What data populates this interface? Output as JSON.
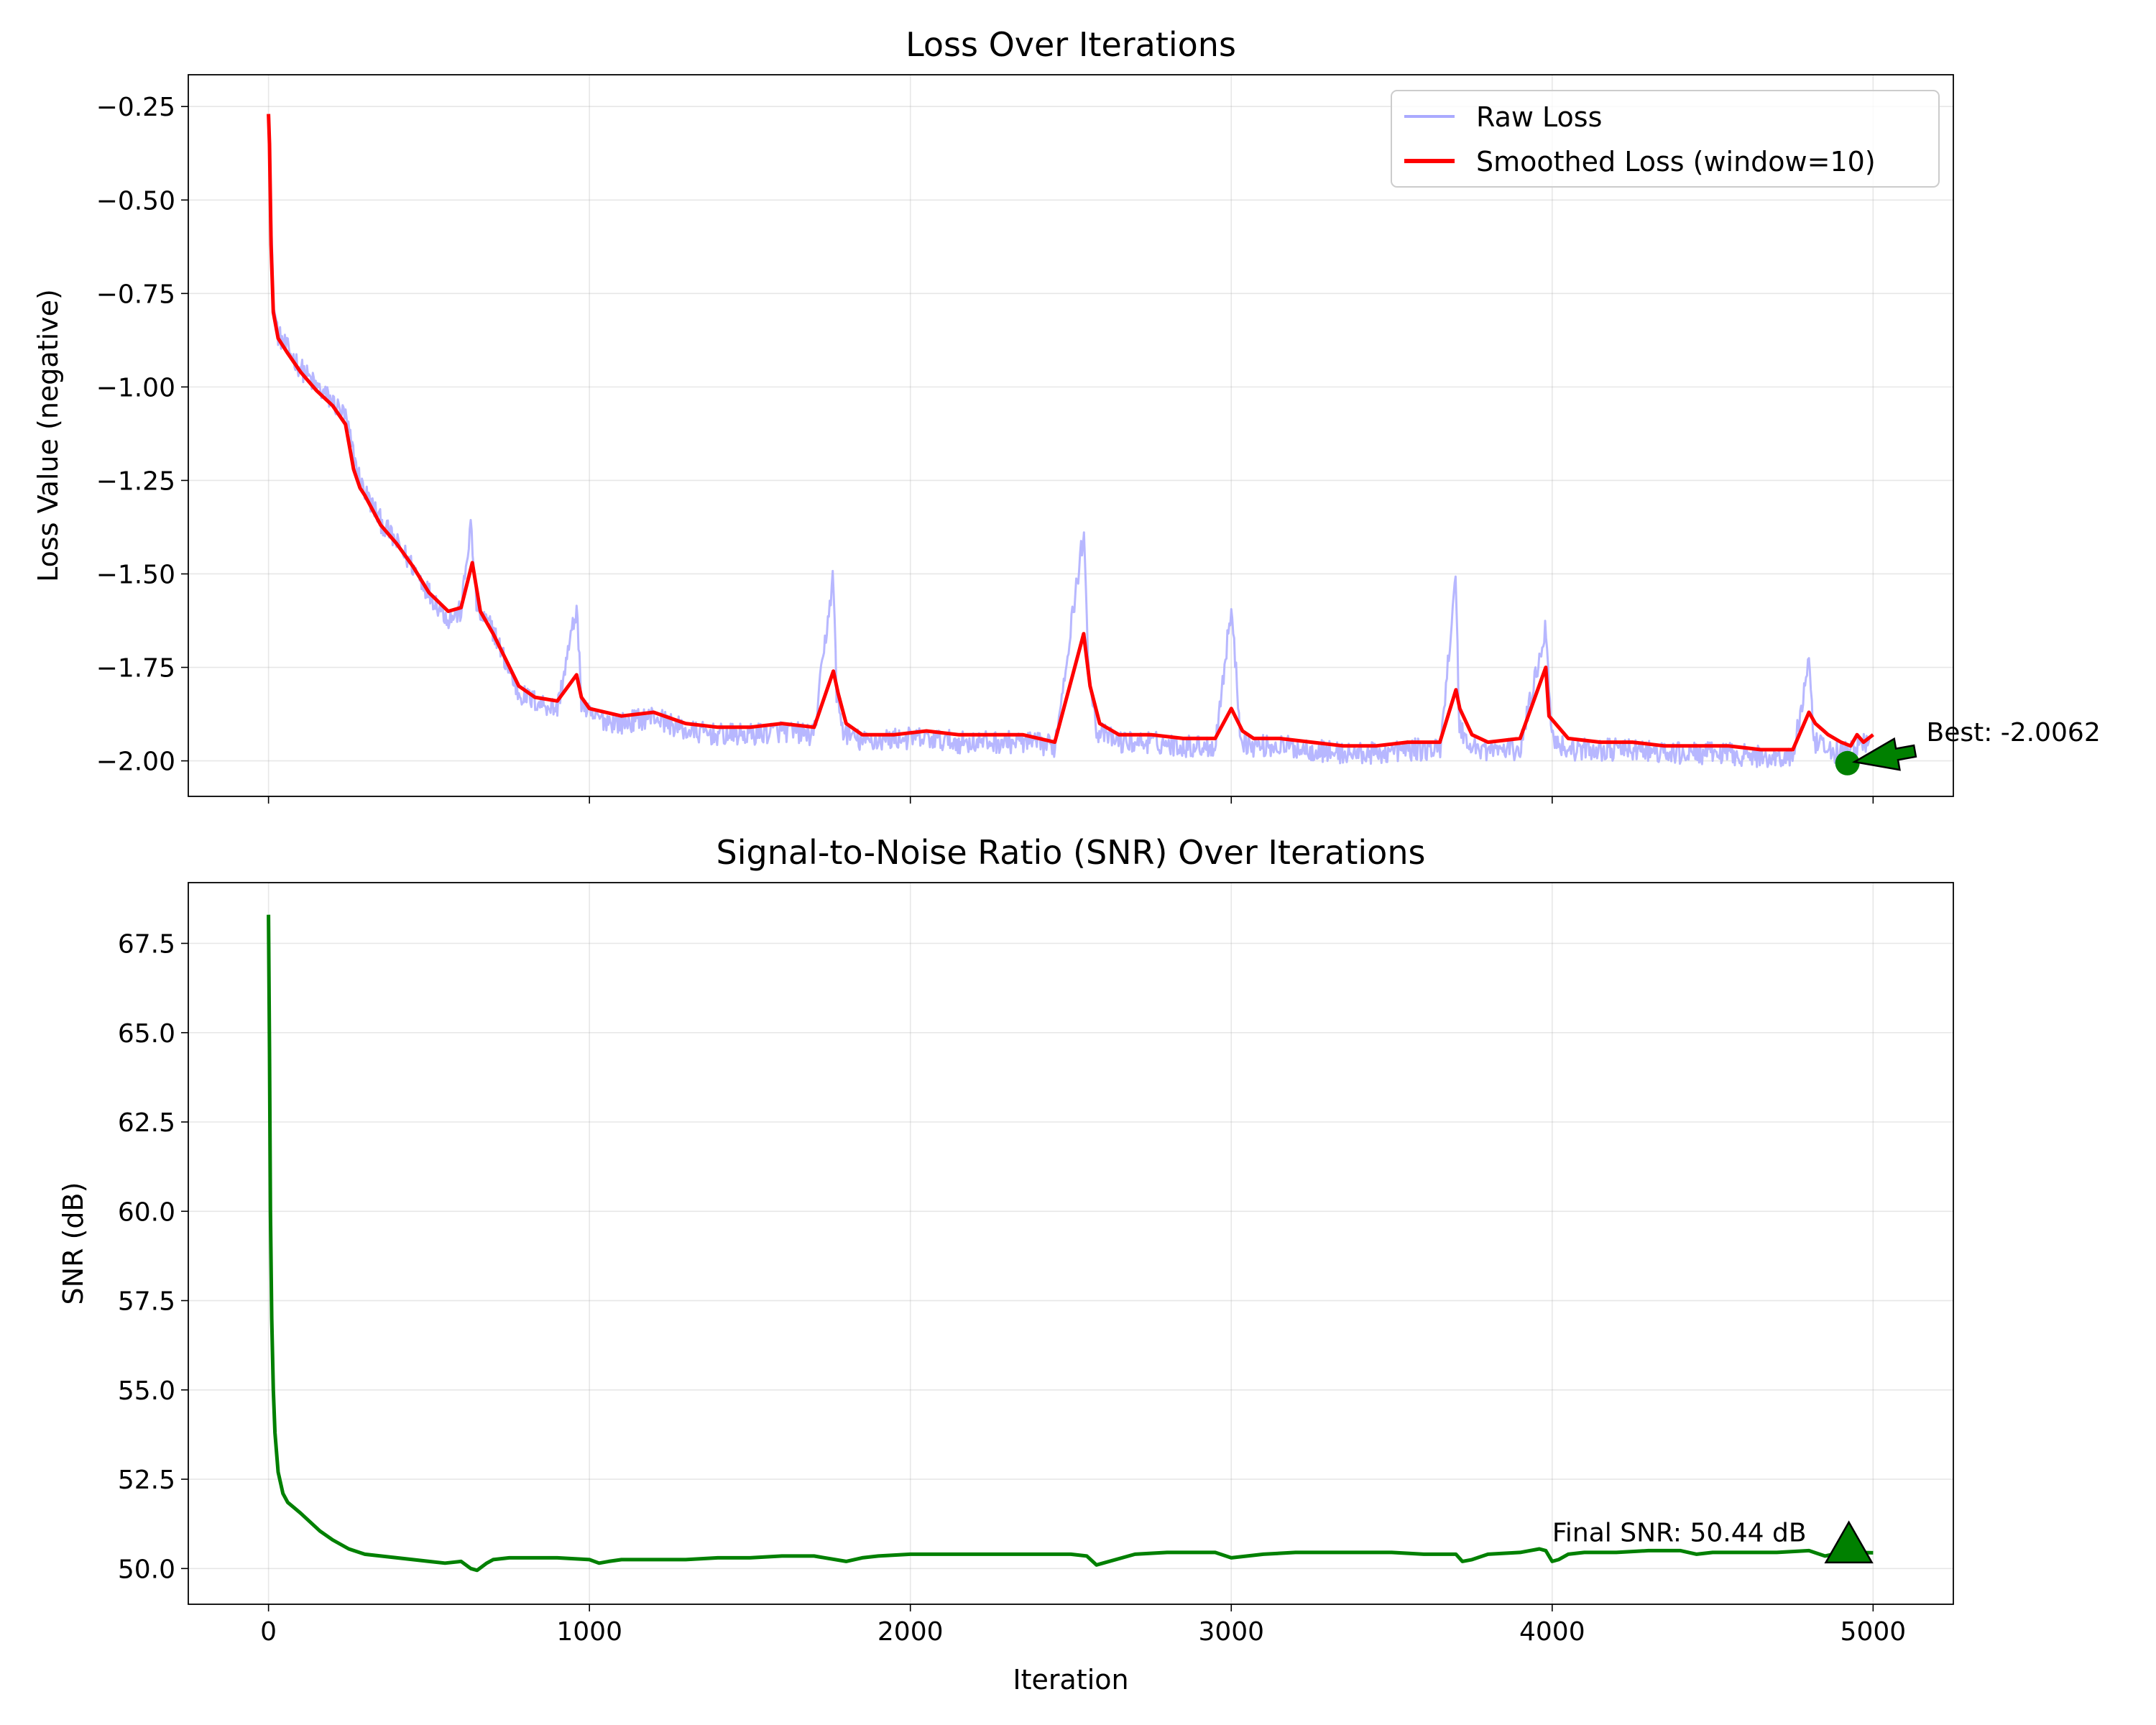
{
  "chart_data": [
    {
      "type": "line",
      "title": "Loss Over Iterations",
      "xlabel": "",
      "ylabel": "Loss Value (negative)",
      "xlim": [
        -250,
        5250
      ],
      "ylim": [
        -2.095,
        -0.165
      ],
      "xticks": [
        0,
        1000,
        2000,
        3000,
        4000,
        5000
      ],
      "xtick_labels_shown": false,
      "yticks": [
        -0.25,
        -0.5,
        -0.75,
        -1.0,
        -1.25,
        -1.5,
        -1.75,
        -2.0
      ],
      "ytick_labels": [
        "−0.25",
        "−0.50",
        "−0.75",
        "−1.00",
        "−1.25",
        "−1.50",
        "−1.75",
        "−2.00"
      ],
      "grid": true,
      "legend": "top-right",
      "series": [
        {
          "name": "Raw Loss",
          "color": "#aaaaff",
          "style": "noisy",
          "x": [
            0,
            3,
            8,
            15,
            30,
            60,
            100,
            150,
            200,
            240,
            265,
            285,
            300,
            350,
            400,
            450,
            500,
            560,
            600,
            630,
            650,
            700,
            740,
            780,
            830,
            900,
            960,
            975,
            1000,
            1100,
            1200,
            1300,
            1400,
            1500,
            1600,
            1700,
            1760,
            1770,
            1790,
            1850,
            1950,
            2050,
            2150,
            2250,
            2350,
            2450,
            2540,
            2555,
            2580,
            2650,
            2750,
            2850,
            2950,
            3000,
            3030,
            3060,
            3150,
            3250,
            3350,
            3450,
            3550,
            3650,
            3700,
            3710,
            3740,
            3800,
            3900,
            3980,
            4000,
            4050,
            4150,
            4250,
            4350,
            4450,
            4550,
            4650,
            4750,
            4800,
            4815,
            4850,
            4900,
            4950,
            4990
          ],
          "y": [
            -0.25,
            -0.3,
            -0.55,
            -0.78,
            -0.86,
            -0.9,
            -0.95,
            -1.0,
            -1.04,
            -1.08,
            -1.18,
            -1.25,
            -1.28,
            -1.36,
            -1.42,
            -1.48,
            -1.55,
            -1.62,
            -1.6,
            -1.37,
            -1.6,
            -1.65,
            -1.74,
            -1.82,
            -1.84,
            -1.86,
            -1.59,
            -1.84,
            -1.88,
            -1.9,
            -1.88,
            -1.92,
            -1.93,
            -1.93,
            -1.92,
            -1.93,
            -1.5,
            -1.82,
            -1.92,
            -1.95,
            -1.94,
            -1.94,
            -1.95,
            -1.95,
            -1.95,
            -1.96,
            -1.39,
            -1.74,
            -1.92,
            -1.95,
            -1.95,
            -1.96,
            -1.96,
            -1.59,
            -1.94,
            -1.96,
            -1.96,
            -1.97,
            -1.98,
            -1.98,
            -1.97,
            -1.97,
            -1.51,
            -1.9,
            -1.96,
            -1.97,
            -1.97,
            -1.64,
            -1.94,
            -1.97,
            -1.97,
            -1.97,
            -1.98,
            -1.98,
            -1.98,
            -1.99,
            -1.99,
            -1.74,
            -1.95,
            -1.97,
            -1.98,
            -1.96,
            -1.95
          ]
        },
        {
          "name": "Smoothed Loss (window=10)",
          "color": "#ff0000",
          "x": [
            0,
            3,
            8,
            15,
            30,
            60,
            100,
            150,
            200,
            240,
            265,
            285,
            300,
            350,
            400,
            450,
            500,
            560,
            600,
            635,
            660,
            700,
            740,
            780,
            830,
            900,
            960,
            975,
            1000,
            1100,
            1200,
            1300,
            1400,
            1500,
            1600,
            1700,
            1760,
            1775,
            1800,
            1850,
            1950,
            2050,
            2150,
            2250,
            2350,
            2450,
            2540,
            2560,
            2590,
            2650,
            2750,
            2850,
            2950,
            3000,
            3035,
            3070,
            3150,
            3250,
            3350,
            3450,
            3550,
            3650,
            3700,
            3712,
            3750,
            3800,
            3900,
            3980,
            3990,
            4050,
            4150,
            4250,
            4350,
            4450,
            4550,
            4650,
            4750,
            4800,
            4820,
            4860,
            4900,
            4930,
            4950,
            4970,
            5000
          ],
          "y": [
            -0.27,
            -0.35,
            -0.62,
            -0.8,
            -0.87,
            -0.91,
            -0.96,
            -1.01,
            -1.05,
            -1.1,
            -1.22,
            -1.27,
            -1.29,
            -1.37,
            -1.42,
            -1.48,
            -1.55,
            -1.6,
            -1.59,
            -1.47,
            -1.6,
            -1.66,
            -1.73,
            -1.8,
            -1.83,
            -1.84,
            -1.77,
            -1.83,
            -1.86,
            -1.88,
            -1.87,
            -1.9,
            -1.91,
            -1.91,
            -1.9,
            -1.91,
            -1.76,
            -1.82,
            -1.9,
            -1.93,
            -1.93,
            -1.92,
            -1.93,
            -1.93,
            -1.93,
            -1.95,
            -1.66,
            -1.8,
            -1.9,
            -1.93,
            -1.93,
            -1.94,
            -1.94,
            -1.86,
            -1.92,
            -1.94,
            -1.94,
            -1.95,
            -1.96,
            -1.96,
            -1.95,
            -1.95,
            -1.81,
            -1.86,
            -1.93,
            -1.95,
            -1.94,
            -1.75,
            -1.88,
            -1.94,
            -1.95,
            -1.95,
            -1.96,
            -1.96,
            -1.96,
            -1.97,
            -1.97,
            -1.87,
            -1.9,
            -1.93,
            -1.95,
            -1.96,
            -1.93,
            -1.95,
            -1.93
          ]
        }
      ],
      "annotations": [
        {
          "text": "Best: -2.0062",
          "point_x": 4920,
          "point_y": -2.0062,
          "text_x": 5175,
          "text_y": -1.97,
          "color": "#008000"
        }
      ]
    },
    {
      "type": "line",
      "title": "Signal-to-Noise Ratio (SNR) Over Iterations",
      "xlabel": "Iteration",
      "ylabel": "SNR (dB)",
      "xlim": [
        -250,
        5250
      ],
      "ylim": [
        49.0,
        69.2
      ],
      "xticks": [
        0,
        1000,
        2000,
        3000,
        4000,
        5000
      ],
      "xtick_labels": [
        "0",
        "1000",
        "2000",
        "3000",
        "4000",
        "5000"
      ],
      "yticks": [
        50.0,
        52.5,
        55.0,
        57.5,
        60.0,
        62.5,
        65.0,
        67.5
      ],
      "ytick_labels": [
        "50.0",
        "52.5",
        "55.0",
        "57.5",
        "60.0",
        "62.5",
        "65.0",
        "67.5"
      ],
      "grid": true,
      "series": [
        {
          "color": "#008000",
          "x": [
            0,
            3,
            6,
            10,
            15,
            20,
            30,
            45,
            60,
            80,
            100,
            130,
            160,
            200,
            250,
            300,
            350,
            400,
            450,
            500,
            550,
            600,
            630,
            650,
            680,
            700,
            750,
            800,
            900,
            1000,
            1030,
            1060,
            1100,
            1200,
            1300,
            1400,
            1500,
            1600,
            1700,
            1800,
            1850,
            1900,
            2000,
            2100,
            2200,
            2300,
            2400,
            2500,
            2550,
            2580,
            2600,
            2700,
            2800,
            2900,
            2950,
            3000,
            3050,
            3100,
            3200,
            3300,
            3400,
            3500,
            3600,
            3700,
            3720,
            3750,
            3800,
            3900,
            3960,
            3980,
            4000,
            4020,
            4050,
            4100,
            4200,
            4300,
            4400,
            4450,
            4500,
            4600,
            4700,
            4800,
            4850,
            4900,
            4950,
            5000
          ],
          "y": [
            68.3,
            64.5,
            60.0,
            57.0,
            55.0,
            53.8,
            52.7,
            52.1,
            51.85,
            51.7,
            51.55,
            51.3,
            51.05,
            50.8,
            50.55,
            50.4,
            50.35,
            50.3,
            50.25,
            50.2,
            50.15,
            50.2,
            50.0,
            49.95,
            50.15,
            50.25,
            50.3,
            50.3,
            50.3,
            50.25,
            50.15,
            50.2,
            50.25,
            50.25,
            50.25,
            50.3,
            50.3,
            50.35,
            50.35,
            50.2,
            50.3,
            50.35,
            50.4,
            50.4,
            50.4,
            50.4,
            50.4,
            50.4,
            50.35,
            50.1,
            50.15,
            50.4,
            50.45,
            50.45,
            50.45,
            50.3,
            50.35,
            50.4,
            50.45,
            50.45,
            50.45,
            50.45,
            50.4,
            50.4,
            50.2,
            50.25,
            50.4,
            50.45,
            50.55,
            50.5,
            50.2,
            50.25,
            50.4,
            50.45,
            50.45,
            50.5,
            50.5,
            50.4,
            50.45,
            50.45,
            50.45,
            50.5,
            50.35,
            50.45,
            50.45,
            50.44
          ]
        }
      ],
      "annotations": [
        {
          "text": "Final SNR: 50.44 dB",
          "point_x": 5000,
          "point_y": 50.44,
          "text_x": 4000,
          "text_y": 51.0,
          "color": "#008000"
        }
      ]
    }
  ]
}
